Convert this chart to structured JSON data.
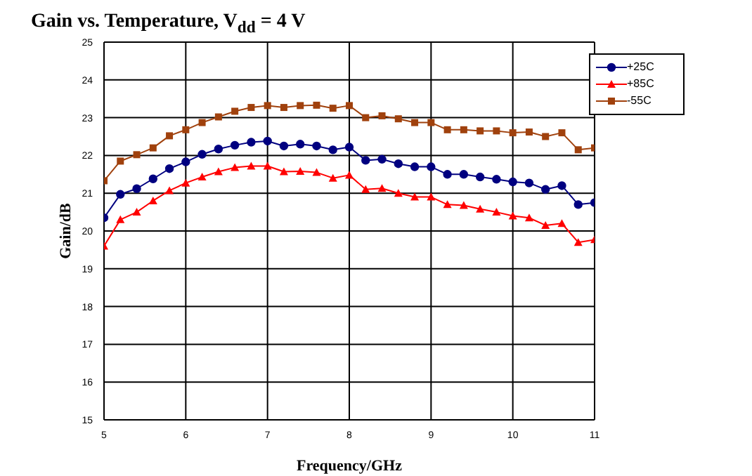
{
  "chart_data": {
    "type": "line",
    "title": "Gain vs. Temperature, V$_{dd}$ = 4 V",
    "xlabel": "Frequency/GHz",
    "ylabel": "Gain/dB",
    "x": [
      5.0,
      5.2,
      5.4,
      5.6,
      5.8,
      6.0,
      6.2,
      6.4,
      6.6,
      6.8,
      7.0,
      7.2,
      7.4,
      7.6,
      7.8,
      8.0,
      8.2,
      8.4,
      8.6,
      8.8,
      9.0,
      9.2,
      9.4,
      9.6,
      9.8,
      10.0,
      10.2,
      10.4,
      10.6,
      10.8,
      11.0
    ],
    "series": [
      {
        "name": "+25C",
        "color": "#000080",
        "marker": "circle",
        "values": [
          20.35,
          20.97,
          21.12,
          21.38,
          21.65,
          21.83,
          22.03,
          22.17,
          22.27,
          22.35,
          22.38,
          22.25,
          22.3,
          22.25,
          22.15,
          22.22,
          21.87,
          21.9,
          21.78,
          21.7,
          21.7,
          21.5,
          21.5,
          21.43,
          21.37,
          21.3,
          21.27,
          21.1,
          21.2,
          20.7,
          20.75
        ]
      },
      {
        "name": "+85C",
        "color": "#ff0000",
        "marker": "triangle",
        "values": [
          19.6,
          20.3,
          20.5,
          20.8,
          21.07,
          21.27,
          21.43,
          21.57,
          21.68,
          21.72,
          21.72,
          21.57,
          21.58,
          21.55,
          21.4,
          21.48,
          21.1,
          21.13,
          21.0,
          20.9,
          20.9,
          20.7,
          20.68,
          20.58,
          20.5,
          20.4,
          20.35,
          20.15,
          20.2,
          19.7,
          19.77
        ]
      },
      {
        "name": "-55C",
        "color": "#a0410d",
        "marker": "square",
        "values": [
          21.33,
          21.85,
          22.02,
          22.2,
          22.52,
          22.68,
          22.87,
          23.02,
          23.17,
          23.27,
          23.32,
          23.27,
          23.32,
          23.33,
          23.25,
          23.32,
          23.0,
          23.05,
          22.97,
          22.87,
          22.87,
          22.68,
          22.68,
          22.65,
          22.65,
          22.6,
          22.62,
          22.5,
          22.6,
          22.15,
          22.2
        ]
      }
    ],
    "xlim": [
      5,
      11
    ],
    "xticks": [
      5,
      6,
      7,
      8,
      9,
      10,
      11
    ],
    "ylim": [
      15,
      25
    ],
    "yticks": [
      15,
      16,
      17,
      18,
      19,
      20,
      21,
      22,
      23,
      24,
      25
    ],
    "grid": true,
    "legend": "top right",
    "line_style": "solid"
  }
}
